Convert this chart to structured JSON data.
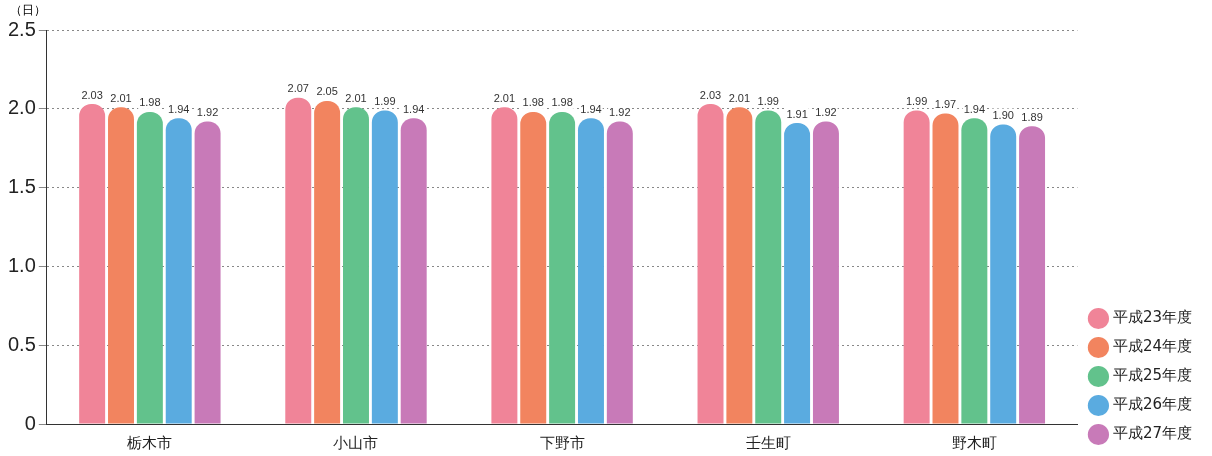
{
  "chart_data": {
    "type": "bar",
    "ylabel": "（日）",
    "categories": [
      "栃木市",
      "小山市",
      "下野市",
      "壬生町",
      "野木町"
    ],
    "series": [
      {
        "name": "平成23年度",
        "color": "#f08498",
        "values": [
          2.03,
          2.07,
          2.01,
          2.03,
          1.99
        ],
        "value_labels": [
          "2.03",
          "2.07",
          "2.01",
          "2.03",
          "1.99"
        ]
      },
      {
        "name": "平成24年度",
        "color": "#f2845f",
        "values": [
          2.01,
          2.05,
          1.98,
          2.01,
          1.97
        ],
        "value_labels": [
          "2.01",
          "2.05",
          "1.98",
          "2.01",
          "1.97"
        ]
      },
      {
        "name": "平成25年度",
        "color": "#62c28c",
        "values": [
          1.98,
          2.01,
          1.98,
          1.99,
          1.94
        ],
        "value_labels": [
          "1.98",
          "2.01",
          "1.98",
          "1.99",
          "1.94"
        ]
      },
      {
        "name": "平成26年度",
        "color": "#5aabe0",
        "values": [
          1.94,
          1.99,
          1.94,
          1.91,
          1.9
        ],
        "value_labels": [
          "1.94",
          "1.99",
          "1.94",
          "1.91",
          "1.90"
        ]
      },
      {
        "name": "平成27年度",
        "color": "#c87ab8",
        "values": [
          1.92,
          1.94,
          1.92,
          1.92,
          1.89
        ],
        "value_labels": [
          "1.92",
          "1.94",
          "1.92",
          "1.92",
          "1.89"
        ]
      }
    ],
    "ylim": [
      0,
      2.5
    ],
    "yticks": [
      0,
      {
        "value": 0.5,
        "label": "0.5"
      },
      {
        "value": 1,
        "label": "1.0"
      },
      {
        "value": 1.5,
        "label": "1.5"
      },
      {
        "value": 2,
        "label": "2.0"
      },
      {
        "value": 2.5,
        "label": "2.5"
      }
    ],
    "grid": "y",
    "legend": "right"
  }
}
